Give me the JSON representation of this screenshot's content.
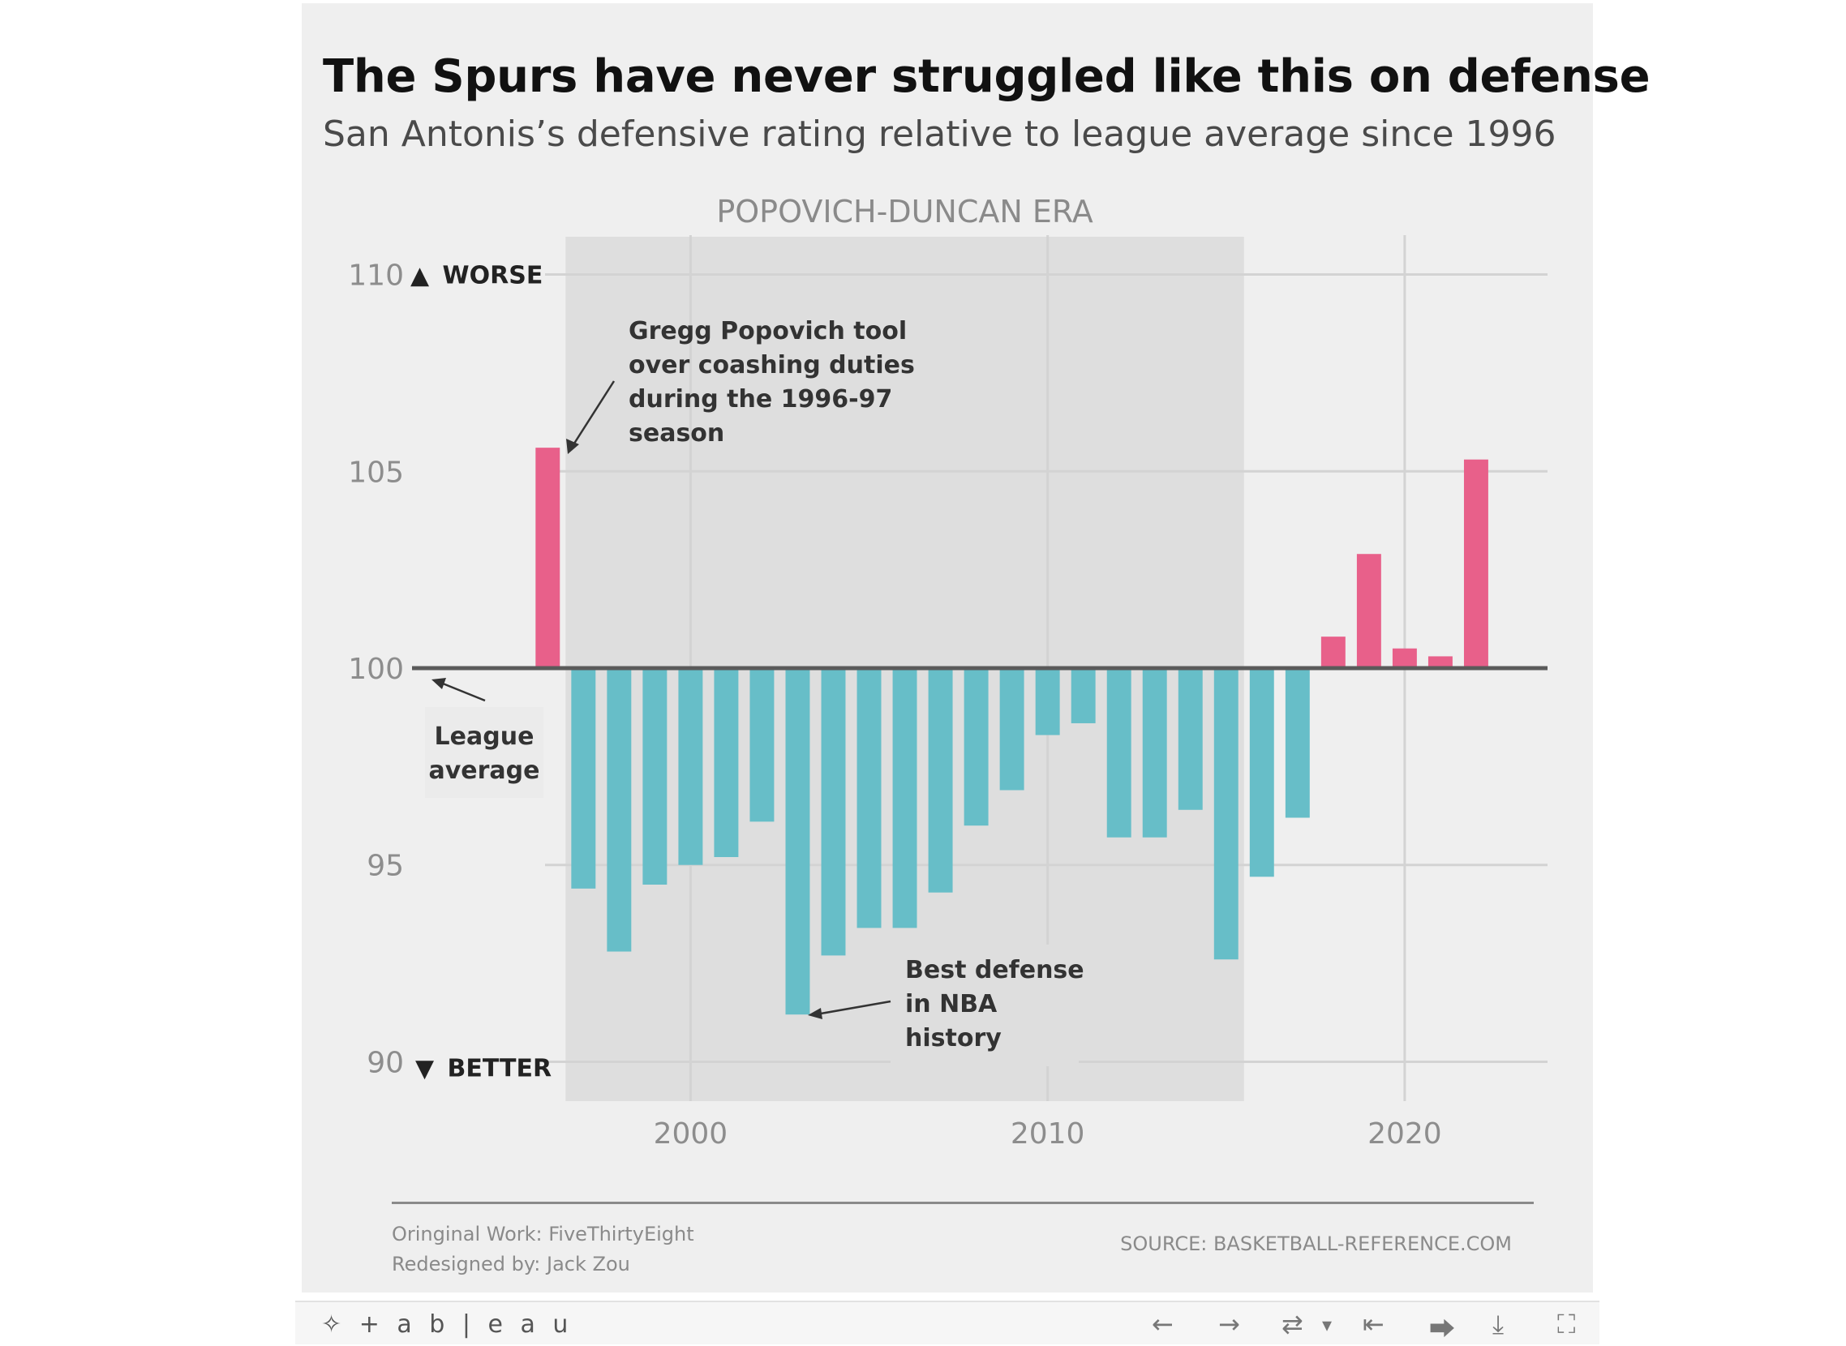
{
  "header": {
    "title": "The Spurs have never struggled like this on defense",
    "subtitle": "San Antonis’s defensive rating relative to league average since 1996"
  },
  "chart_data": {
    "type": "bar",
    "x": [
      1996,
      1997,
      1998,
      1999,
      2000,
      2001,
      2002,
      2003,
      2004,
      2005,
      2006,
      2007,
      2008,
      2009,
      2010,
      2011,
      2012,
      2013,
      2014,
      2015,
      2016,
      2017,
      2018,
      2019,
      2020,
      2021,
      2022
    ],
    "values": [
      105.6,
      94.4,
      92.8,
      94.5,
      95.0,
      95.2,
      96.1,
      91.2,
      92.7,
      93.4,
      93.4,
      94.3,
      96.0,
      96.9,
      98.3,
      98.6,
      95.7,
      95.7,
      96.4,
      92.6,
      94.7,
      96.2,
      100.8,
      102.9,
      100.5,
      100.3,
      105.3
    ],
    "baseline": 100,
    "ylim": [
      89,
      111
    ],
    "xlim": [
      1992.2,
      2024
    ],
    "yticks": [
      90,
      95,
      100,
      105,
      110
    ],
    "xticks": [
      2000,
      2010,
      2020
    ],
    "ytick_labels": [
      "90",
      "95",
      "100",
      "105",
      "110"
    ],
    "xtick_labels": [
      "2000",
      "2010",
      "2020"
    ],
    "worse_label": "WORSE",
    "better_label": "BETTER",
    "worse_arrow": "▲",
    "better_arrow": "▼",
    "era": {
      "label": "POPOVICH-DUNCAN ERA",
      "start": 1996.5,
      "end": 2015.5
    },
    "annotations": [
      {
        "lines": [
          "Gregg Popovich tool",
          "over coashing duties",
          "during the 1996-97",
          "season"
        ]
      },
      {
        "lines": [
          "League",
          "average"
        ]
      },
      {
        "lines": [
          "Best defense",
          "in NBA",
          "history"
        ]
      }
    ],
    "colors": {
      "worse": "#e8608a",
      "better": "#67bec8",
      "baseline": "#5a5a5a",
      "era": "#dedede"
    },
    "grid": true
  },
  "footer": {
    "credit_line1": "Oringinal Work: FiveThirtyEight",
    "credit_line2": "Redesigned by: Jack Zou",
    "source": "SOURCE: BASKETBALL-REFERENCE.COM"
  },
  "toolbar": {
    "logo": "+ a b | e a u",
    "logo_icon": "tableau-cross-icon",
    "undo": "←",
    "redo": "→",
    "revert": "⇄",
    "revert_menu": "▾",
    "reset": "⇤",
    "share": "⮕",
    "download": "⤓",
    "fullscreen": "⛶"
  }
}
